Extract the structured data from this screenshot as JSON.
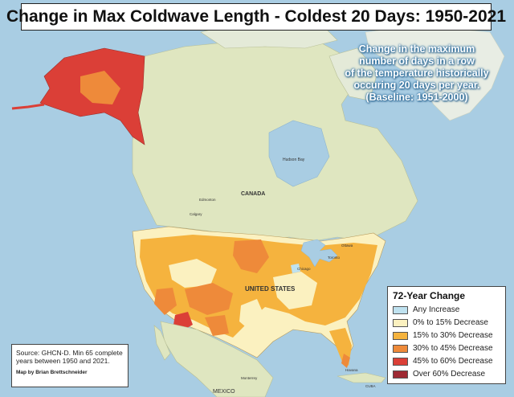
{
  "title": "Change in Max Coldwave Length - Coldest 20 Days: 1950-2021",
  "subtitle_lines": [
    "Change in the maximum",
    "number of days in a row",
    "of the temperature historically",
    "occuring 20 days per year.",
    "(Baseline: 1951-2000)"
  ],
  "legend": {
    "title": "72-Year Change",
    "items": [
      {
        "label": "Any Increase",
        "color": "#bfe2f0"
      },
      {
        "label": "0% to 15% Decrease",
        "color": "#fbf1c0"
      },
      {
        "label": "15% to 30% Decrease",
        "color": "#f5b33e"
      },
      {
        "label": "30% to 45% Decrease",
        "color": "#ee8a3a"
      },
      {
        "label": "45% to 60% Decrease",
        "color": "#db3f37"
      },
      {
        "label": "Over 60% Decrease",
        "color": "#9e2a33"
      }
    ]
  },
  "source": "Source: GHCN-D. Min 65 complete years between 1950 and 2021.",
  "credit": "Map by Brian Brettschneider",
  "place_labels": {
    "canada": "CANADA",
    "united_states": "UNITED STATES",
    "mexico": "MEXICO",
    "hudson_bay": "Hudson Bay",
    "edmonton": "Edmonton",
    "calgary": "Calgary",
    "ottawa": "Ottawa",
    "toronto": "Toronto",
    "chicago": "Chicago",
    "monterrey": "Monterrey",
    "havana": "Havana",
    "cuba": "CUBA"
  },
  "colors": {
    "ocean": "#a9cde3",
    "land_other": "#dfe6c0",
    "land_north": "#e9efdc",
    "lakes": "#a9cde3"
  }
}
